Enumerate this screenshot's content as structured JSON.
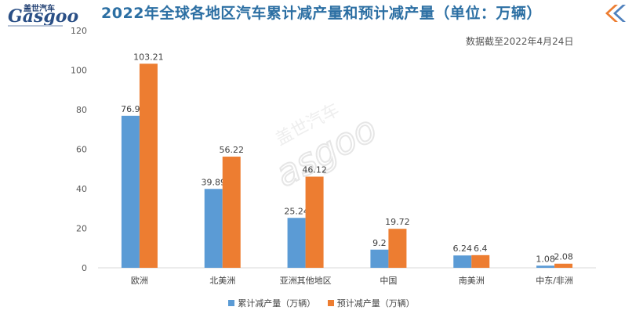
{
  "logo": {
    "brand_cn": "盖世汽车",
    "brand_en": "Gasgoo"
  },
  "note": "数据截至2022年4月24日",
  "watermark": {
    "text_cn": "盖世汽车",
    "text_en": "asgoo"
  },
  "colors": {
    "title": "#2c6fa3",
    "series1": "#5b9bd5",
    "series2": "#ed7d31",
    "axis": "#d9d9d9"
  },
  "icons": {
    "nav": "double-chevron-left-icon"
  },
  "chart_data": {
    "type": "bar",
    "title": "2022年全球各地区汽车累计减产量和预计减产量（单位：万辆）",
    "categories": [
      "欧洲",
      "北美洲",
      "亚洲其他地区",
      "中国",
      "南美洲",
      "中东/非洲"
    ],
    "series": [
      {
        "name": "累计减产量（万辆）",
        "values": [
          76.9,
          39.89,
          25.24,
          9.2,
          6.24,
          1.08
        ]
      },
      {
        "name": "预计减产量（万辆）",
        "values": [
          103.21,
          56.22,
          46.12,
          19.72,
          6.4,
          2.08
        ]
      }
    ],
    "ylim": [
      0,
      120
    ],
    "yticks": [
      0,
      20,
      40,
      60,
      80,
      100,
      120
    ],
    "grid": false,
    "legend": "bottom"
  }
}
